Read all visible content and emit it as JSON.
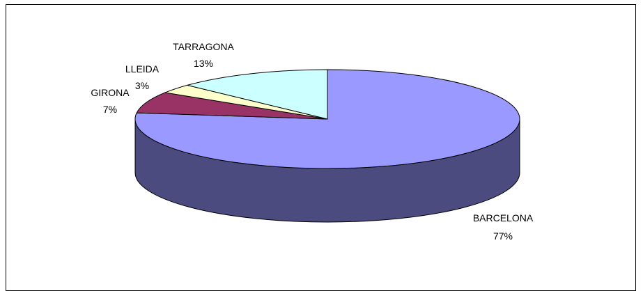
{
  "chart_data": {
    "type": "pie",
    "style": "3d",
    "title": "",
    "slices": [
      {
        "name": "BARCELONA",
        "value": 77,
        "percent_label": "77%",
        "color": "#9999ff",
        "side_color": "#4b4b7f"
      },
      {
        "name": "GIRONA",
        "value": 7,
        "percent_label": "7%",
        "color": "#993366",
        "side_color": "#4c1933"
      },
      {
        "name": "LLEIDA",
        "value": 3,
        "percent_label": "3%",
        "color": "#ffffcc",
        "side_color": "#7f7f66"
      },
      {
        "name": "TARRAGONA",
        "value": 13,
        "percent_label": "13%",
        "color": "#ccffff",
        "side_color": "#667f7f"
      }
    ],
    "legend": "none",
    "outline_color": "#000000"
  }
}
